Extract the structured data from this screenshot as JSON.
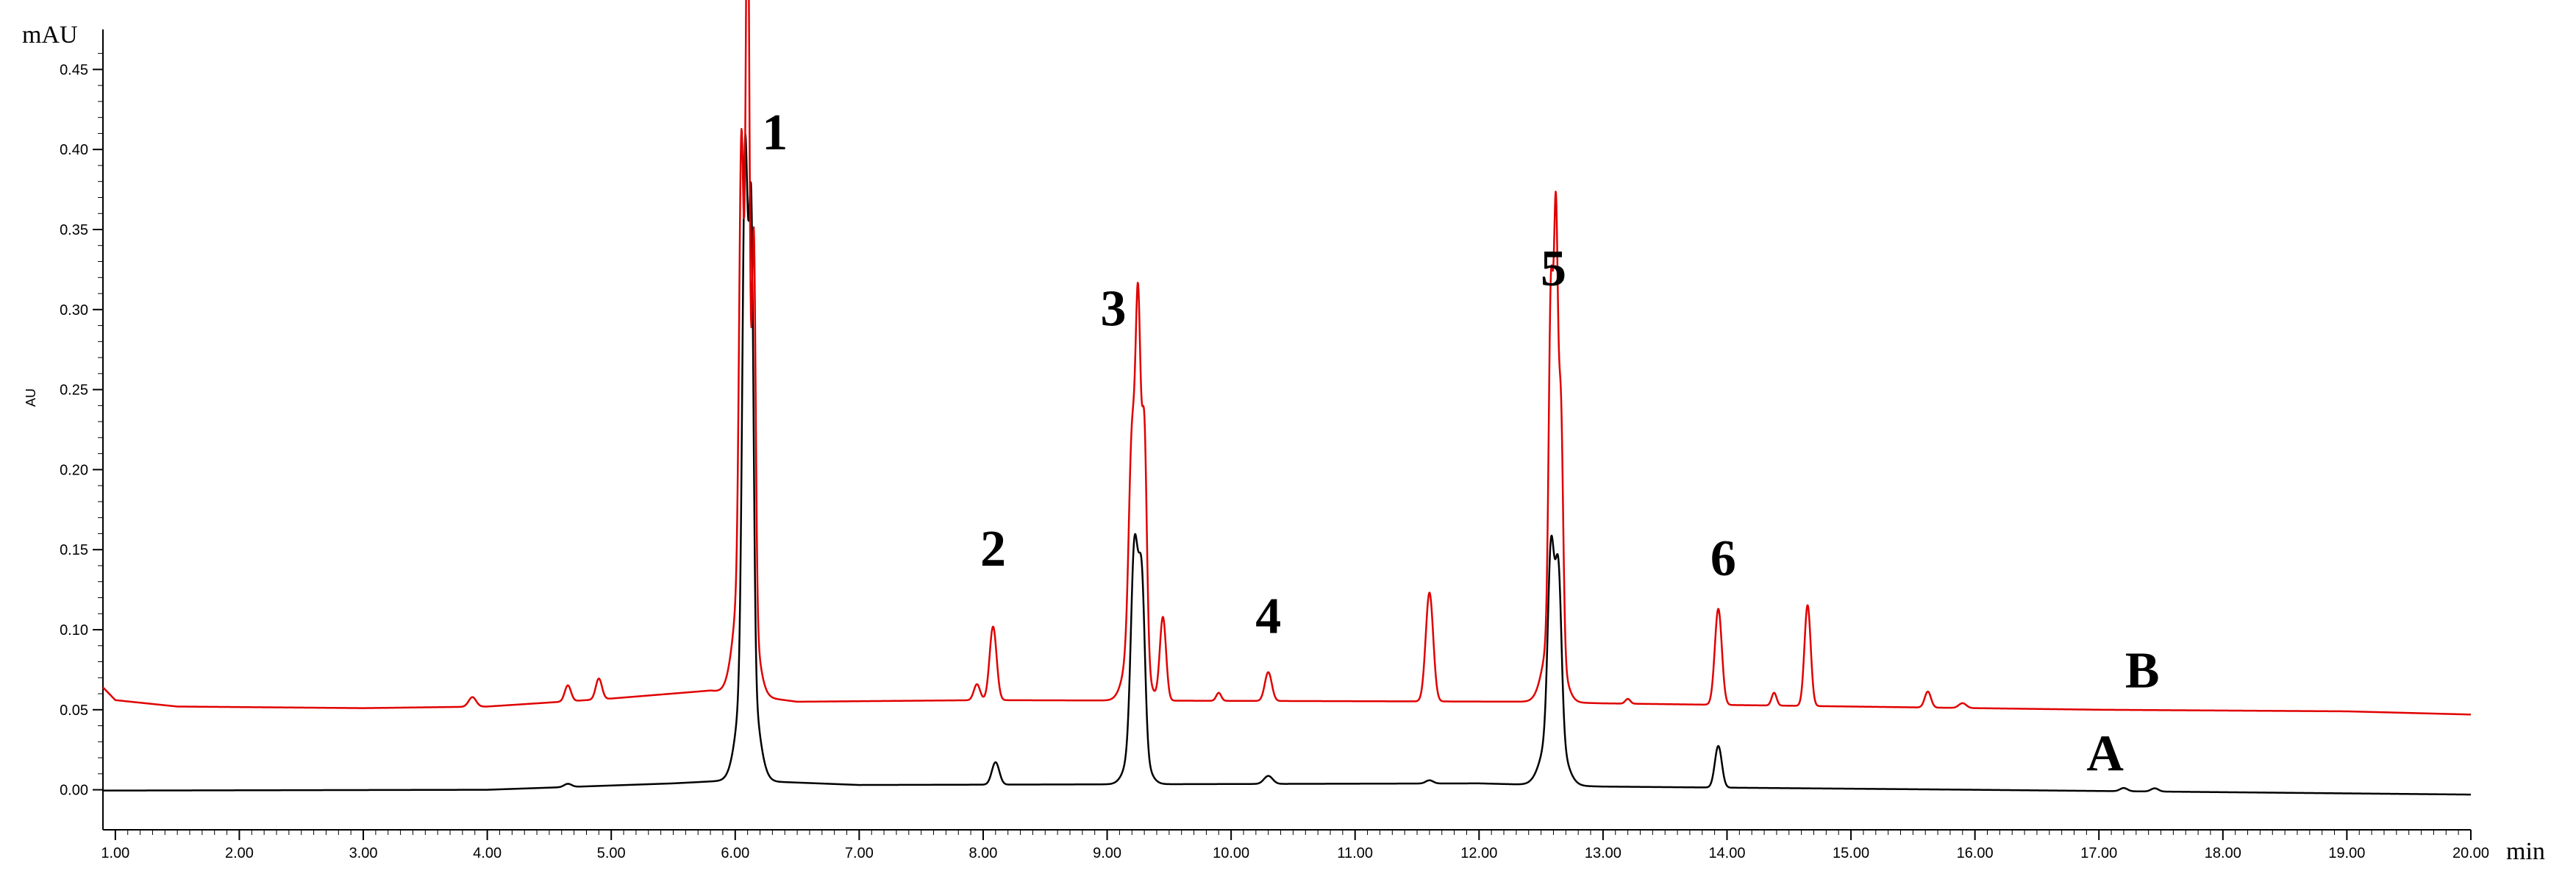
{
  "chart_data": {
    "type": "line",
    "title": "",
    "y_unit_label": "mAU",
    "ylabel": "AU",
    "x_unit_label": "min",
    "xlim": [
      0.9,
      20.0
    ],
    "ylim": [
      -0.025,
      0.475
    ],
    "x_ticks": [
      1.0,
      2.0,
      3.0,
      4.0,
      5.0,
      6.0,
      7.0,
      8.0,
      9.0,
      10.0,
      11.0,
      12.0,
      13.0,
      14.0,
      15.0,
      16.0,
      17.0,
      18.0,
      19.0,
      20.0
    ],
    "x_tick_labels": [
      "1.00",
      "2.00",
      "3.00",
      "4.00",
      "5.00",
      "6.00",
      "7.00",
      "8.00",
      "9.00",
      "10.00",
      "11.00",
      "12.00",
      "13.00",
      "14.00",
      "15.00",
      "16.00",
      "17.00",
      "18.00",
      "19.00",
      "20.00"
    ],
    "y_ticks": [
      0.0,
      0.05,
      0.1,
      0.15,
      0.2,
      0.25,
      0.3,
      0.35,
      0.4,
      0.45
    ],
    "y_tick_labels": [
      "0.00",
      "0.05",
      "0.10",
      "0.15",
      "0.20",
      "0.25",
      "0.30",
      "0.35",
      "0.40",
      "0.45"
    ],
    "grid": false,
    "colors": {
      "A": "#000000",
      "B": "#e00000"
    },
    "series": [
      {
        "name": "A",
        "color": "#000000",
        "baseline": [
          [
            0.9,
            -0.0005
          ],
          [
            4.0,
            0.0
          ],
          [
            5.5,
            0.004
          ],
          [
            6.0,
            0.006
          ],
          [
            7.0,
            0.003
          ],
          [
            12.0,
            0.004
          ],
          [
            13.0,
            0.002
          ],
          [
            16.0,
            0.0
          ],
          [
            20.0,
            -0.003
          ]
        ],
        "peaks": [
          {
            "x": 4.65,
            "h": 0.002,
            "w": 0.03
          },
          {
            "x": 6.08,
            "h": 0.32,
            "w": 0.022
          },
          {
            "x": 6.13,
            "h": 0.27,
            "w": 0.018
          },
          {
            "x": 6.1,
            "h": 0.08,
            "w": 0.07
          },
          {
            "x": 8.1,
            "h": 0.014,
            "w": 0.03
          },
          {
            "x": 9.22,
            "h": 0.12,
            "w": 0.028
          },
          {
            "x": 9.28,
            "h": 0.1,
            "w": 0.025
          },
          {
            "x": 9.24,
            "h": 0.03,
            "w": 0.07
          },
          {
            "x": 10.3,
            "h": 0.005,
            "w": 0.035
          },
          {
            "x": 11.6,
            "h": 0.002,
            "w": 0.03
          },
          {
            "x": 12.58,
            "h": 0.11,
            "w": 0.025
          },
          {
            "x": 12.64,
            "h": 0.1,
            "w": 0.025
          },
          {
            "x": 12.6,
            "h": 0.04,
            "w": 0.08
          },
          {
            "x": 13.93,
            "h": 0.026,
            "w": 0.028
          },
          {
            "x": 17.2,
            "h": 0.002,
            "w": 0.03
          },
          {
            "x": 17.45,
            "h": 0.002,
            "w": 0.03
          }
        ]
      },
      {
        "name": "B",
        "color": "#e00000",
        "baseline": [
          [
            0.9,
            0.064
          ],
          [
            1.0,
            0.056
          ],
          [
            1.5,
            0.052
          ],
          [
            3.0,
            0.051
          ],
          [
            4.0,
            0.052
          ],
          [
            5.0,
            0.057
          ],
          [
            5.8,
            0.062
          ],
          [
            6.5,
            0.055
          ],
          [
            8.0,
            0.056
          ],
          [
            12.5,
            0.055
          ],
          [
            13.0,
            0.054
          ],
          [
            14.0,
            0.053
          ],
          [
            15.0,
            0.052
          ],
          [
            17.0,
            0.05
          ],
          [
            19.0,
            0.049
          ],
          [
            20.0,
            0.047
          ]
        ],
        "peaks": [
          {
            "x": 3.88,
            "h": 0.006,
            "w": 0.03
          },
          {
            "x": 4.65,
            "h": 0.01,
            "w": 0.025
          },
          {
            "x": 4.9,
            "h": 0.013,
            "w": 0.025
          },
          {
            "x": 6.05,
            "h": 0.26,
            "w": 0.018
          },
          {
            "x": 6.1,
            "h": 0.43,
            "w": 0.015
          },
          {
            "x": 6.15,
            "h": 0.23,
            "w": 0.015
          },
          {
            "x": 6.08,
            "h": 0.1,
            "w": 0.07
          },
          {
            "x": 7.95,
            "h": 0.01,
            "w": 0.025
          },
          {
            "x": 8.08,
            "h": 0.046,
            "w": 0.028
          },
          {
            "x": 9.2,
            "h": 0.12,
            "w": 0.025
          },
          {
            "x": 9.25,
            "h": 0.19,
            "w": 0.02
          },
          {
            "x": 9.3,
            "h": 0.14,
            "w": 0.02
          },
          {
            "x": 9.23,
            "h": 0.05,
            "w": 0.07
          },
          {
            "x": 9.45,
            "h": 0.052,
            "w": 0.025
          },
          {
            "x": 9.9,
            "h": 0.005,
            "w": 0.02
          },
          {
            "x": 10.3,
            "h": 0.018,
            "w": 0.028
          },
          {
            "x": 11.6,
            "h": 0.068,
            "w": 0.03
          },
          {
            "x": 12.58,
            "h": 0.21,
            "w": 0.018
          },
          {
            "x": 12.62,
            "h": 0.24,
            "w": 0.016
          },
          {
            "x": 12.66,
            "h": 0.15,
            "w": 0.018
          },
          {
            "x": 12.6,
            "h": 0.05,
            "w": 0.07
          },
          {
            "x": 13.2,
            "h": 0.003,
            "w": 0.02
          },
          {
            "x": 13.93,
            "h": 0.06,
            "w": 0.028
          },
          {
            "x": 14.38,
            "h": 0.008,
            "w": 0.02
          },
          {
            "x": 14.65,
            "h": 0.063,
            "w": 0.025
          },
          {
            "x": 15.62,
            "h": 0.01,
            "w": 0.025
          },
          {
            "x": 15.9,
            "h": 0.003,
            "w": 0.03
          }
        ]
      }
    ],
    "peak_labels": [
      {
        "text": "1",
        "x": 6.32,
        "y": 0.4
      },
      {
        "text": "2",
        "x": 8.08,
        "y": 0.14
      },
      {
        "text": "3",
        "x": 9.05,
        "y": 0.29
      },
      {
        "text": "4",
        "x": 10.3,
        "y": 0.098
      },
      {
        "text": "5",
        "x": 12.6,
        "y": 0.315
      },
      {
        "text": "6",
        "x": 13.97,
        "y": 0.134
      }
    ],
    "trace_labels": [
      {
        "text": "B",
        "x": 17.35,
        "y": 0.064
      },
      {
        "text": "A",
        "x": 17.05,
        "y": 0.012
      }
    ]
  }
}
